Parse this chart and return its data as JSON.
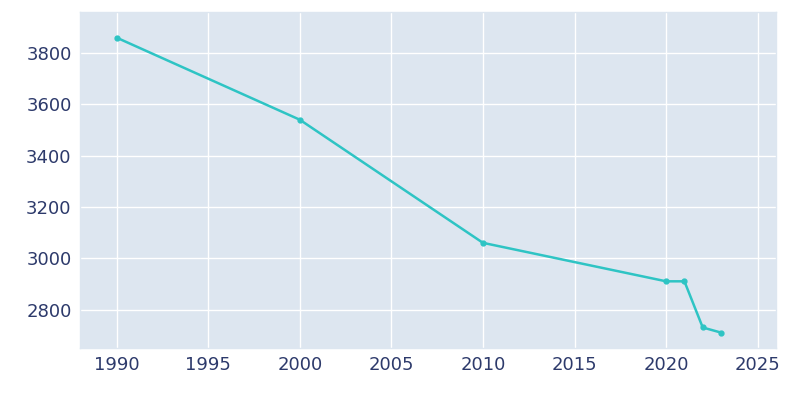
{
  "years": [
    1990,
    2000,
    2010,
    2020,
    2021,
    2022,
    2023
  ],
  "population": [
    3860,
    3540,
    3060,
    2910,
    2910,
    2730,
    2710
  ],
  "line_color": "#2ec4c4",
  "marker_style": "o",
  "marker_size": 3.5,
  "line_width": 1.8,
  "plot_background_color": "#dde6f0",
  "fig_background_color": "#ffffff",
  "grid_color": "#ffffff",
  "xlim": [
    1988,
    2026
  ],
  "ylim": [
    2650,
    3960
  ],
  "xticks": [
    1990,
    1995,
    2000,
    2005,
    2010,
    2015,
    2020,
    2025
  ],
  "yticks": [
    2800,
    3000,
    3200,
    3400,
    3600,
    3800
  ],
  "tick_fontsize": 13,
  "tick_color": "#2d3a6b",
  "spine_color": "#c0c8d8"
}
